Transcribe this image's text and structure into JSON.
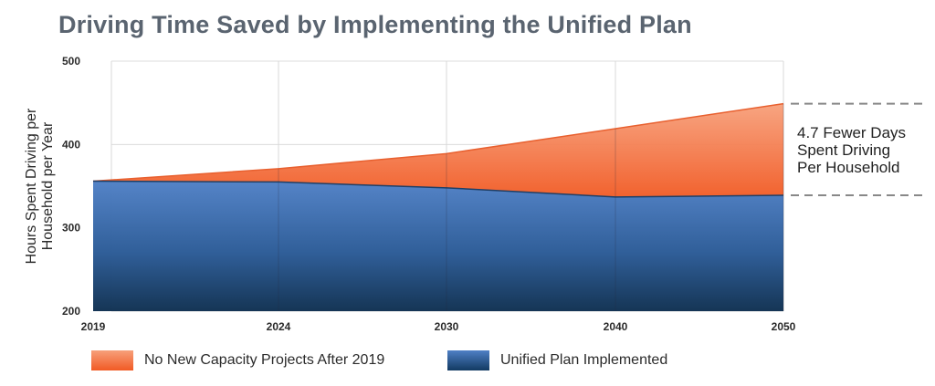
{
  "chart_data": {
    "type": "area",
    "title": "Driving Time Saved by Implementing the Unified Plan",
    "ylabel": "Hours Spent Driving per Household per Year",
    "xlabel": "",
    "categories": [
      "2019",
      "2024",
      "2030",
      "2040",
      "2050"
    ],
    "y_ticks": [
      "200",
      "300",
      "400",
      "500"
    ],
    "ylim": [
      200,
      500
    ],
    "series": [
      {
        "name": "No New Capacity Projects After 2019",
        "values": [
          356,
          371,
          389,
          419,
          449
        ],
        "color": "#f26b3a"
      },
      {
        "name": "Unified Plan Implemented",
        "values": [
          356,
          355,
          348,
          337,
          339
        ],
        "color": "#3f73b8"
      }
    ],
    "annotation": [
      "4.7 Fewer Days",
      "Spent Driving",
      "Per Household"
    ],
    "grid": true,
    "legend_position": "bottom"
  }
}
